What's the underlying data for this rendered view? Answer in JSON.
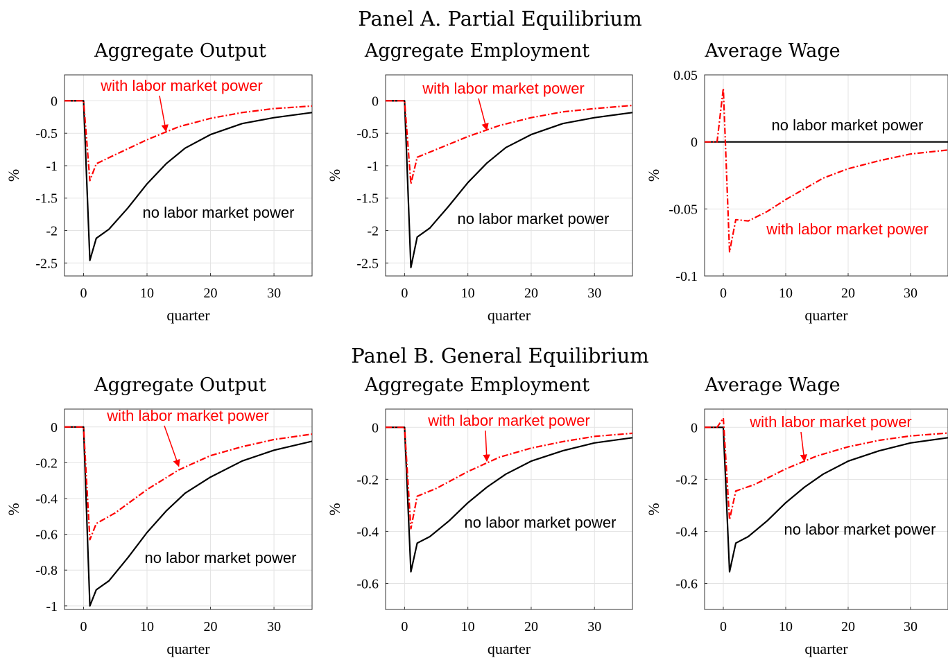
{
  "panels": [
    {
      "title": "Panel A. Partial Equilibrium"
    },
    {
      "title": "Panel B. General Equilibrium"
    }
  ],
  "colors": {
    "no_power": "#000000",
    "with_power": "#ff0000",
    "grid": "#e3e3e3",
    "axes": "#333333"
  },
  "chart_data": [
    {
      "type": "line",
      "panel": "Panel A. Partial Equilibrium",
      "title": "Aggregate Output",
      "xlabel": "quarter",
      "ylabel": "%",
      "xlim": [
        -3,
        36
      ],
      "ylim": [
        -2.7,
        0.4
      ],
      "xticks": [
        0,
        10,
        20,
        30
      ],
      "xtick_labels": [
        "0",
        "10",
        "20",
        "30"
      ],
      "yticks": [
        0,
        -0.5,
        -1,
        -1.5,
        -2,
        -2.5
      ],
      "ytick_labels": [
        "0",
        "-0.5",
        "-1",
        "-1.5",
        "-2",
        "-2.5"
      ],
      "series": [
        {
          "name": "no labor market power",
          "style": "solid",
          "points": [
            [
              -3,
              0
            ],
            [
              0,
              0
            ],
            [
              1,
              -2.46
            ],
            [
              2,
              -2.12
            ],
            [
              4,
              -1.98
            ],
            [
              7,
              -1.65
            ],
            [
              10,
              -1.28
            ],
            [
              13,
              -0.97
            ],
            [
              16,
              -0.73
            ],
            [
              20,
              -0.52
            ],
            [
              25,
              -0.35
            ],
            [
              30,
              -0.26
            ],
            [
              36,
              -0.18
            ]
          ]
        },
        {
          "name": "with labor market power",
          "style": "dashdot",
          "points": [
            [
              -3,
              0
            ],
            [
              0,
              0
            ],
            [
              1,
              -1.23
            ],
            [
              2,
              -0.97
            ],
            [
              5,
              -0.83
            ],
            [
              10,
              -0.6
            ],
            [
              15,
              -0.4
            ],
            [
              20,
              -0.27
            ],
            [
              25,
              -0.18
            ],
            [
              30,
              -0.12
            ],
            [
              36,
              -0.08
            ]
          ]
        }
      ],
      "annotations": [
        {
          "text": "with labor market power",
          "series": "with labor market power",
          "arrow_to": [
            13,
            -0.47
          ]
        },
        {
          "text": "no labor market power",
          "series": "no labor market power"
        }
      ]
    },
    {
      "type": "line",
      "panel": "Panel A. Partial Equilibrium",
      "title": "Aggregate Employment",
      "xlabel": "quarter",
      "ylabel": "%",
      "xlim": [
        -3,
        36
      ],
      "ylim": [
        -2.7,
        0.4
      ],
      "xticks": [
        0,
        10,
        20,
        30
      ],
      "xtick_labels": [
        "0",
        "10",
        "20",
        "30"
      ],
      "yticks": [
        0,
        -0.5,
        -1,
        -1.5,
        -2,
        -2.5
      ],
      "ytick_labels": [
        "0",
        "-0.5",
        "-1",
        "-1.5",
        "-2",
        "-2.5"
      ],
      "series": [
        {
          "name": "no labor market power",
          "style": "solid",
          "points": [
            [
              -3,
              0
            ],
            [
              0,
              0
            ],
            [
              1,
              -2.57
            ],
            [
              2,
              -2.1
            ],
            [
              4,
              -1.96
            ],
            [
              7,
              -1.62
            ],
            [
              10,
              -1.26
            ],
            [
              13,
              -0.96
            ],
            [
              16,
              -0.72
            ],
            [
              20,
              -0.52
            ],
            [
              25,
              -0.35
            ],
            [
              30,
              -0.26
            ],
            [
              36,
              -0.18
            ]
          ]
        },
        {
          "name": "with labor market power",
          "style": "dashdot",
          "points": [
            [
              -3,
              0
            ],
            [
              0,
              0
            ],
            [
              1,
              -1.28
            ],
            [
              2,
              -0.87
            ],
            [
              5,
              -0.75
            ],
            [
              10,
              -0.55
            ],
            [
              15,
              -0.38
            ],
            [
              20,
              -0.26
            ],
            [
              25,
              -0.17
            ],
            [
              30,
              -0.12
            ],
            [
              36,
              -0.07
            ]
          ]
        }
      ],
      "annotations": [
        {
          "text": "with labor market power",
          "series": "with labor market power",
          "arrow_to": [
            13,
            -0.45
          ]
        },
        {
          "text": "no labor market power",
          "series": "no labor market power"
        }
      ]
    },
    {
      "type": "line",
      "panel": "Panel A. Partial Equilibrium",
      "title": "Average Wage",
      "xlabel": "quarter",
      "ylabel": "%",
      "xlim": [
        -3,
        36
      ],
      "ylim": [
        -0.1,
        0.05
      ],
      "xticks": [
        0,
        10,
        20,
        30
      ],
      "xtick_labels": [
        "0",
        "10",
        "20",
        "30"
      ],
      "yticks": [
        0.05,
        0,
        -0.05,
        -0.1
      ],
      "ytick_labels": [
        "0.05",
        "0",
        "-0.05",
        "-0.1"
      ],
      "series": [
        {
          "name": "no labor market power",
          "style": "solid",
          "points": [
            [
              -3,
              0
            ],
            [
              36,
              0
            ]
          ]
        },
        {
          "name": "with labor market power",
          "style": "dashdot",
          "points": [
            [
              -3,
              0
            ],
            [
              -1,
              0
            ],
            [
              0,
              0.04
            ],
            [
              1,
              -0.082
            ],
            [
              2,
              -0.058
            ],
            [
              4,
              -0.059
            ],
            [
              7,
              -0.052
            ],
            [
              10,
              -0.043
            ],
            [
              13,
              -0.035
            ],
            [
              16,
              -0.027
            ],
            [
              20,
              -0.02
            ],
            [
              25,
              -0.014
            ],
            [
              30,
              -0.009
            ],
            [
              36,
              -0.006
            ]
          ]
        }
      ],
      "annotations": [
        {
          "text": "no labor market power",
          "series": "no labor market power"
        },
        {
          "text": "with labor market power",
          "series": "with labor market power"
        }
      ]
    },
    {
      "type": "line",
      "panel": "Panel B. General Equilibrium",
      "title": "Aggregate Output",
      "xlabel": "quarter",
      "ylabel": "%",
      "xlim": [
        -3,
        36
      ],
      "ylim": [
        -1.02,
        0.1
      ],
      "xticks": [
        0,
        10,
        20,
        30
      ],
      "xtick_labels": [
        "0",
        "10",
        "20",
        "30"
      ],
      "yticks": [
        0,
        -0.2,
        -0.4,
        -0.6,
        -0.8,
        -1
      ],
      "ytick_labels": [
        "0",
        "-0.2",
        "-0.4",
        "-0.6",
        "-0.8",
        "-1"
      ],
      "series": [
        {
          "name": "no labor market power",
          "style": "solid",
          "points": [
            [
              -3,
              0
            ],
            [
              0,
              0
            ],
            [
              1,
              -1.0
            ],
            [
              2,
              -0.91
            ],
            [
              4,
              -0.86
            ],
            [
              7,
              -0.73
            ],
            [
              10,
              -0.59
            ],
            [
              13,
              -0.47
            ],
            [
              16,
              -0.37
            ],
            [
              20,
              -0.28
            ],
            [
              25,
              -0.19
            ],
            [
              30,
              -0.13
            ],
            [
              36,
              -0.08
            ]
          ]
        },
        {
          "name": "with labor market power",
          "style": "dashdot",
          "points": [
            [
              -3,
              0
            ],
            [
              0,
              0
            ],
            [
              1,
              -0.63
            ],
            [
              2,
              -0.54
            ],
            [
              5,
              -0.48
            ],
            [
              10,
              -0.35
            ],
            [
              15,
              -0.24
            ],
            [
              20,
              -0.16
            ],
            [
              25,
              -0.11
            ],
            [
              30,
              -0.07
            ],
            [
              36,
              -0.04
            ]
          ]
        }
      ],
      "annotations": [
        {
          "text": "with labor market power",
          "series": "with labor market power",
          "arrow_to": [
            15,
            -0.22
          ]
        },
        {
          "text": "no labor market power",
          "series": "no labor market power"
        }
      ]
    },
    {
      "type": "line",
      "panel": "Panel B. General Equilibrium",
      "title": "Aggregate Employment",
      "xlabel": "quarter",
      "ylabel": "%",
      "xlim": [
        -3,
        36
      ],
      "ylim": [
        -0.7,
        0.07
      ],
      "xticks": [
        0,
        10,
        20,
        30
      ],
      "xtick_labels": [
        "0",
        "10",
        "20",
        "30"
      ],
      "yticks": [
        0,
        -0.2,
        -0.4,
        -0.6
      ],
      "ytick_labels": [
        "0",
        "-0.2",
        "-0.4",
        "-0.6"
      ],
      "series": [
        {
          "name": "no labor market power",
          "style": "solid",
          "points": [
            [
              -3,
              0
            ],
            [
              0,
              0
            ],
            [
              1,
              -0.555
            ],
            [
              2,
              -0.445
            ],
            [
              4,
              -0.42
            ],
            [
              7,
              -0.36
            ],
            [
              10,
              -0.29
            ],
            [
              13,
              -0.23
            ],
            [
              16,
              -0.18
            ],
            [
              20,
              -0.13
            ],
            [
              25,
              -0.09
            ],
            [
              30,
              -0.06
            ],
            [
              36,
              -0.04
            ]
          ]
        },
        {
          "name": "with labor market power",
          "style": "dashdot",
          "points": [
            [
              -3,
              0
            ],
            [
              0,
              0
            ],
            [
              1,
              -0.39
            ],
            [
              2,
              -0.265
            ],
            [
              5,
              -0.235
            ],
            [
              10,
              -0.17
            ],
            [
              15,
              -0.115
            ],
            [
              20,
              -0.08
            ],
            [
              25,
              -0.055
            ],
            [
              30,
              -0.035
            ],
            [
              36,
              -0.023
            ]
          ]
        }
      ],
      "annotations": [
        {
          "text": "with labor market power",
          "series": "with labor market power",
          "arrow_to": [
            13,
            -0.13
          ]
        },
        {
          "text": "no labor market power",
          "series": "no labor market power"
        }
      ]
    },
    {
      "type": "line",
      "panel": "Panel B. General Equilibrium",
      "title": "Average Wage",
      "xlabel": "quarter",
      "ylabel": "%",
      "xlim": [
        -3,
        36
      ],
      "ylim": [
        -0.7,
        0.07
      ],
      "xticks": [
        0,
        10,
        20,
        30
      ],
      "xtick_labels": [
        "0",
        "10",
        "20",
        "30"
      ],
      "yticks": [
        0,
        -0.2,
        -0.4,
        -0.6
      ],
      "ytick_labels": [
        "0",
        "-0.2",
        "-0.4",
        "-0.6"
      ],
      "series": [
        {
          "name": "no labor market power",
          "style": "solid",
          "points": [
            [
              -3,
              0
            ],
            [
              0,
              0
            ],
            [
              1,
              -0.555
            ],
            [
              2,
              -0.445
            ],
            [
              4,
              -0.42
            ],
            [
              7,
              -0.36
            ],
            [
              10,
              -0.29
            ],
            [
              13,
              -0.23
            ],
            [
              16,
              -0.18
            ],
            [
              20,
              -0.13
            ],
            [
              25,
              -0.09
            ],
            [
              30,
              -0.06
            ],
            [
              36,
              -0.04
            ]
          ]
        },
        {
          "name": "with labor market power",
          "style": "dashdot",
          "points": [
            [
              -3,
              0
            ],
            [
              -1,
              0
            ],
            [
              0,
              0.035
            ],
            [
              1,
              -0.355
            ],
            [
              2,
              -0.245
            ],
            [
              5,
              -0.22
            ],
            [
              10,
              -0.16
            ],
            [
              15,
              -0.11
            ],
            [
              20,
              -0.075
            ],
            [
              25,
              -0.05
            ],
            [
              30,
              -0.033
            ],
            [
              36,
              -0.022
            ]
          ]
        }
      ],
      "annotations": [
        {
          "text": "with labor market power",
          "series": "with labor market power",
          "arrow_to": [
            13,
            -0.13
          ]
        },
        {
          "text": "no labor market power",
          "series": "no labor market power"
        }
      ]
    }
  ]
}
